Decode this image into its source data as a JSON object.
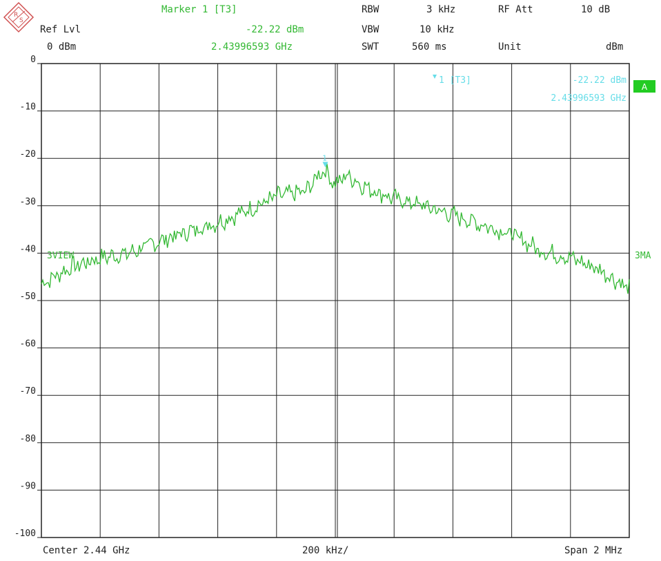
{
  "header": {
    "ref_lvl_label": "Ref Lvl",
    "ref_lvl_value": "0 dBm",
    "marker_title": "Marker 1 [T3]",
    "marker_level": "-22.22 dBm",
    "marker_freq": "2.43996593 GHz",
    "rbw_label": "RBW",
    "rbw_value": "3 kHz",
    "vbw_label": "VBW",
    "vbw_value": "10 kHz",
    "swt_label": "SWT",
    "swt_value": "560 ms",
    "rf_att_label": "RF Att",
    "rf_att_value": "10 dB",
    "unit_label": "Unit",
    "unit_value": "dBm"
  },
  "footer": {
    "center": "Center 2.44 GHz",
    "div": "200 kHz/",
    "span": "Span 2 MHz"
  },
  "annotations": {
    "trace_view": "3VIEW",
    "trace_ma": "3MA",
    "a_badge": "A",
    "marker_box_label": "1 [T3]",
    "marker_box_level": "-22.22 dBm",
    "marker_box_freq": "2.43996593 GHz",
    "marker_symbol": "1"
  },
  "colors": {
    "trace": "#33b833",
    "marker": "#66dde8",
    "grid": "#222222",
    "badge": "#22cc22"
  },
  "chart_data": {
    "type": "line",
    "title": "",
    "xlabel": "",
    "ylabel": "",
    "x_start_mhz": 2439,
    "x_stop_mhz": 2441,
    "ylim": [
      -100,
      0
    ],
    "y_ticks": [
      "0",
      "-10",
      "-20",
      "-30",
      "-40",
      "-50",
      "-60",
      "-70",
      "-80",
      "-90",
      "-100"
    ],
    "grid": true,
    "marker": {
      "freq_mhz": 2439.96593,
      "level_dbm": -22.22
    },
    "series": [
      {
        "x": [
          2439.0,
          2439.1,
          2439.2,
          2439.3,
          2439.4,
          2439.5,
          2439.6,
          2439.7,
          2439.8,
          2439.9,
          2439.96,
          2440.0,
          2440.04,
          2440.1,
          2440.2,
          2440.3,
          2440.4,
          2440.5,
          2440.6,
          2440.7,
          2440.8,
          2440.9,
          2441.0
        ],
        "values": [
          -46.5,
          -43.0,
          -41.0,
          -40.0,
          -37.5,
          -35.5,
          -33.5,
          -31.0,
          -28.0,
          -27.0,
          -22.2,
          -25.5,
          -23.5,
          -26.0,
          -28.5,
          -30.0,
          -32.0,
          -34.0,
          -36.0,
          -39.5,
          -41.0,
          -43.5,
          -47.5
        ]
      }
    ]
  }
}
